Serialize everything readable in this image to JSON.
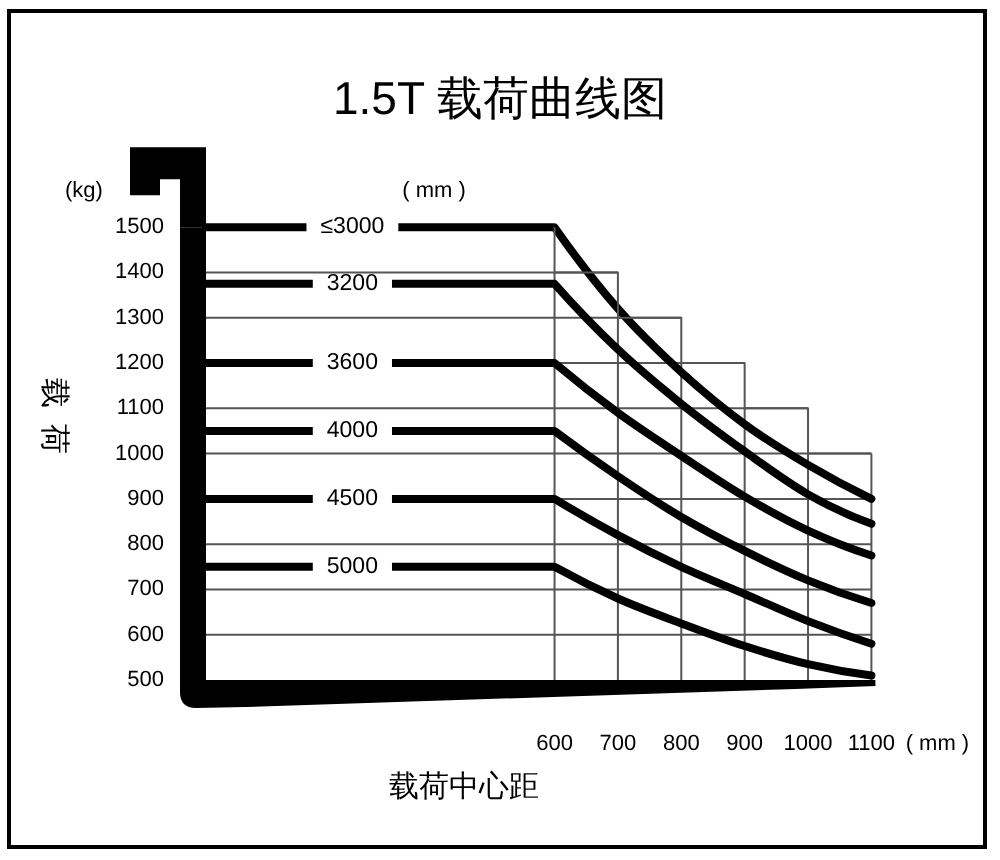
{
  "chart_data": {
    "type": "line",
    "title": "1.5T 载荷曲线图",
    "xlabel": "载荷中心距",
    "ylabel": "载荷",
    "legend_title": "( mm )",
    "annotations": [
      "(kg)",
      "( mm )"
    ],
    "x": [
      50,
      600,
      700,
      800,
      900,
      1000,
      1100
    ],
    "series": [
      {
        "name": "≤3000",
        "color": "#000000",
        "values": [
          1500,
          1500,
          1320,
          1180,
          1065,
          975,
          900
        ]
      },
      {
        "name": "3200",
        "color": "#000000",
        "values": [
          1375,
          1375,
          1230,
          1110,
          1005,
          910,
          845
        ]
      },
      {
        "name": "3600",
        "color": "#000000",
        "values": [
          1200,
          1200,
          1090,
          995,
          905,
          830,
          775
        ]
      },
      {
        "name": "4000",
        "color": "#000000",
        "values": [
          1050,
          1050,
          950,
          860,
          785,
          720,
          670
        ]
      },
      {
        "name": "4500",
        "color": "#000000",
        "values": [
          900,
          900,
          820,
          750,
          690,
          630,
          580
        ]
      },
      {
        "name": "5000",
        "color": "#000000",
        "values": [
          750,
          750,
          680,
          625,
          575,
          535,
          510
        ]
      },
      {
        "type": "step",
        "color": "#555555",
        "x": [
          600,
          700,
          800,
          900,
          1000,
          1100
        ],
        "values": [
          1500,
          1400,
          1300,
          1200,
          1100,
          1000
        ]
      }
    ],
    "xlim": [
      50,
      1100
    ],
    "ylim": [
      500,
      1500
    ],
    "xticks": [
      600,
      700,
      800,
      900,
      1000,
      1100
    ],
    "yticks": [
      500,
      600,
      700,
      800,
      900,
      1000,
      1100,
      1200,
      1300,
      1400,
      1500
    ],
    "grid": true
  }
}
